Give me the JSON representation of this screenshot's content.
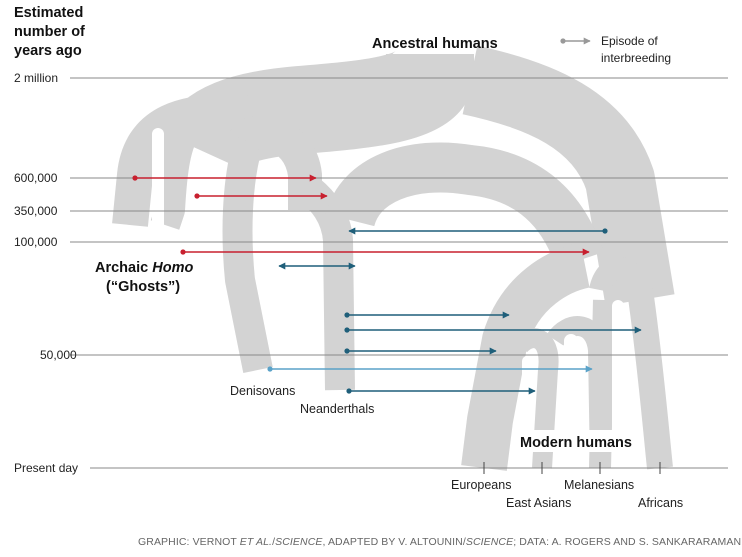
{
  "axis": {
    "header": [
      "Estimated",
      "number of",
      "years ago"
    ],
    "ticks": [
      "2 million",
      "600,000",
      "350,000",
      "100,000",
      "50,000",
      "Present day"
    ]
  },
  "labels": {
    "ancestral": "Ancestral humans",
    "archaic_prefix": "Archaic ",
    "archaic_italic": "Homo",
    "ghosts": "(“Ghosts”)",
    "denisovans": "Denisovans",
    "neanderthals": "Neanderthals",
    "modern": "Modern humans",
    "europeans": "Europeans",
    "east_asians": "East Asians",
    "melanesians": "Melanesians",
    "africans": "Africans"
  },
  "legend": {
    "line1": "Episode of",
    "line2": "interbreeding"
  },
  "credit": {
    "a": "GRAPHIC: VERNOT ",
    "b": "ET AL.",
    "c": "/",
    "d": "SCIENCE",
    "e": ", ADAPTED BY V. ALTOUNIN/",
    "f": "SCIENCE",
    "g": "; DATA: A. ROGERS AND S. SANKARARAMAN"
  },
  "colors": {
    "branch": "#d3d3d3",
    "archaic_arrow": "#c8202f",
    "neanderthal_arrow": "#1f5f7a",
    "denisovan_arrow": "#5aa2c8",
    "legend_arrow": "#999999",
    "gridline": "#8a8a8a"
  },
  "arrows": [
    {
      "from": "Archaic Homo",
      "to": "Denisovans",
      "kind": "archaic"
    },
    {
      "from": "Archaic Homo",
      "to": "Neanderthals",
      "kind": "archaic"
    },
    {
      "from": "Modern humans",
      "to": "Neanderthals",
      "kind": "neanderthal"
    },
    {
      "from": "Archaic Homo",
      "to": "Africans",
      "kind": "archaic"
    },
    {
      "from": "Denisovans",
      "to": "Neanderthals",
      "kind": "neanderthal",
      "bidirectional": true
    },
    {
      "from": "Neanderthals",
      "to": "Europeans",
      "kind": "neanderthal"
    },
    {
      "from": "Neanderthals",
      "to": "Africans",
      "kind": "neanderthal"
    },
    {
      "from": "Neanderthals",
      "to": "Europeans",
      "kind": "neanderthal"
    },
    {
      "from": "Denisovans",
      "to": "Melanesians",
      "kind": "denisovan"
    },
    {
      "from": "Neanderthals",
      "to": "East Asians",
      "kind": "neanderthal"
    }
  ]
}
